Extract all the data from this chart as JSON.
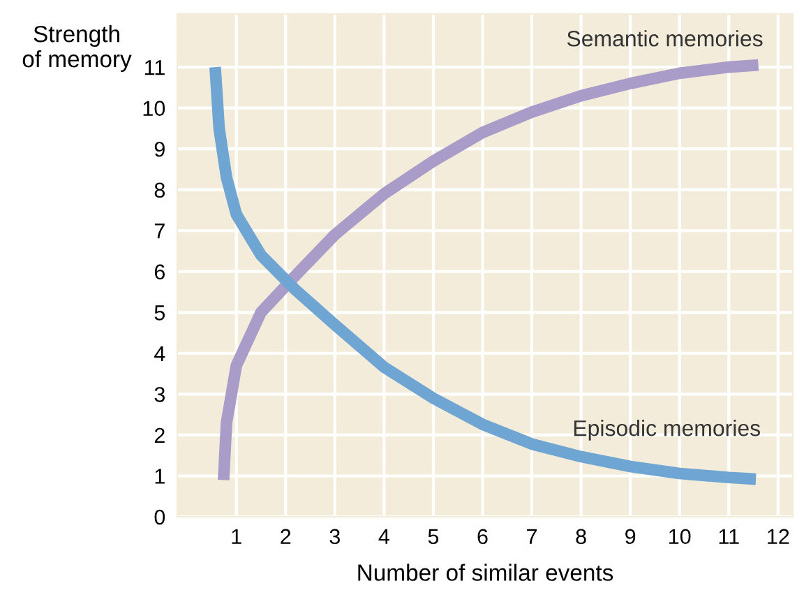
{
  "chart_data": {
    "type": "line",
    "xlabel": "Number of similar events",
    "ylabel": "Strength\nof memory",
    "xlim": [
      -0.2,
      12.3
    ],
    "ylim": [
      0,
      12.3
    ],
    "xticks": [
      1,
      2,
      3,
      4,
      5,
      6,
      7,
      8,
      9,
      10,
      11,
      12
    ],
    "yticks": [
      0,
      1,
      2,
      3,
      4,
      5,
      6,
      7,
      8,
      9,
      10,
      11
    ],
    "grid": true,
    "series": [
      {
        "name": "Semantic memories",
        "color": "#a99cc9",
        "x": [
          0.74,
          0.8,
          1,
          1.5,
          2.2,
          3,
          4,
          5,
          6,
          7,
          8,
          9,
          10,
          11,
          11.6
        ],
        "values": [
          0.9,
          2.3,
          3.7,
          5.0,
          5.9,
          6.9,
          7.9,
          8.7,
          9.4,
          9.9,
          10.3,
          10.6,
          10.85,
          11.0,
          11.05
        ]
      },
      {
        "name": "Episodic memories",
        "color": "#6fa5d2",
        "x": [
          0.57,
          0.65,
          0.8,
          1,
          1.5,
          2.2,
          3,
          4,
          5,
          6,
          7,
          8,
          9,
          10,
          11,
          11.55
        ],
        "values": [
          11,
          9.5,
          8.3,
          7.4,
          6.4,
          5.55,
          4.7,
          3.66,
          2.9,
          2.26,
          1.78,
          1.47,
          1.23,
          1.06,
          0.96,
          0.92
        ]
      }
    ]
  }
}
